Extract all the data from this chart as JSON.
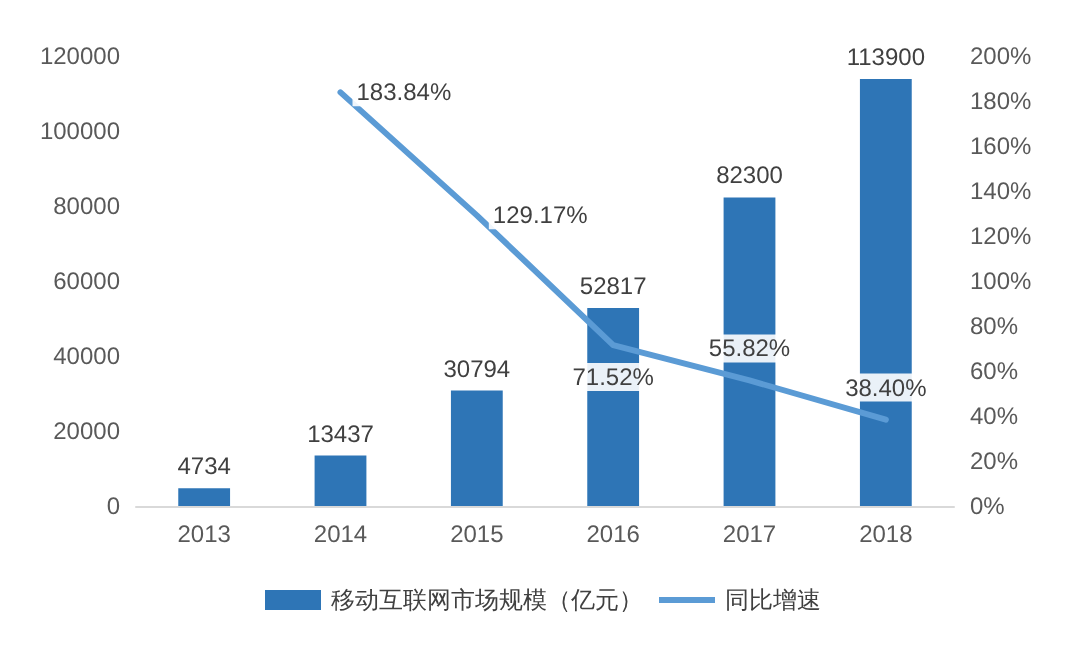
{
  "chart_data": {
    "type": "bar",
    "categories": [
      "2013",
      "2014",
      "2015",
      "2016",
      "2017",
      "2018"
    ],
    "series": [
      {
        "name": "移动互联网市场规模（亿元）",
        "color": "#2e75b6",
        "values": [
          4734,
          13437,
          30794,
          52817,
          82300,
          113900
        ]
      },
      {
        "name": "同比增速",
        "type": "line",
        "axis": "y2",
        "color": "#5b9bd5",
        "values": [
          null,
          183.84,
          129.17,
          71.52,
          55.82,
          38.4
        ],
        "value_labels": [
          null,
          "183.84%",
          "129.17%",
          "71.52%",
          "55.82%",
          "38.40%"
        ]
      }
    ],
    "data_labels": true,
    "ylim": [
      0,
      120000
    ],
    "yticks": [
      0,
      20000,
      40000,
      60000,
      80000,
      100000,
      120000
    ],
    "y2lim": [
      0,
      200
    ],
    "y2ticks": [
      {
        "value": 0,
        "label": "0%"
      },
      {
        "value": 20,
        "label": "20%"
      },
      {
        "value": 40,
        "label": "40%"
      },
      {
        "value": 60,
        "label": "60%"
      },
      {
        "value": 80,
        "label": "80%"
      },
      {
        "value": 100,
        "label": "100%"
      },
      {
        "value": 120,
        "label": "120%"
      },
      {
        "value": 140,
        "label": "140%"
      },
      {
        "value": 160,
        "label": "160%"
      },
      {
        "value": 180,
        "label": "180%"
      },
      {
        "value": 200,
        "label": "200%"
      }
    ],
    "grid": false,
    "legend": "bottom",
    "marker": "none",
    "line_style": "solid"
  }
}
